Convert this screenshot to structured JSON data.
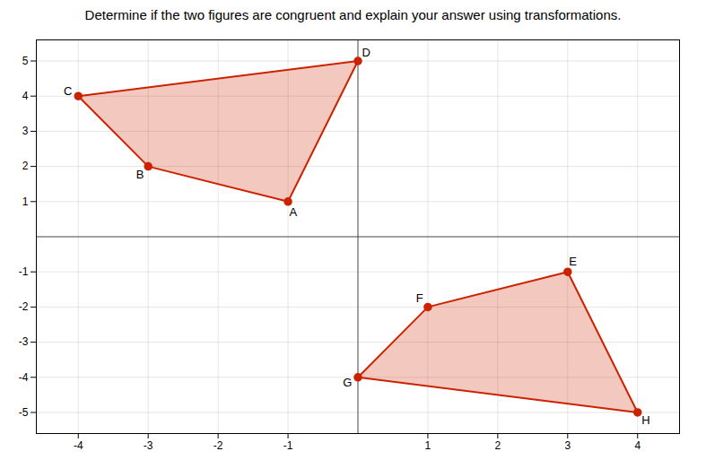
{
  "chart_data": {
    "type": "polygon",
    "title": "Determine if the two figures are congruent and explain your answer using transformations.",
    "xlim": [
      -4.6,
      4.6
    ],
    "ylim": [
      -5.6,
      5.6
    ],
    "xticks": [
      -4,
      -3,
      -2,
      -1,
      1,
      2,
      3,
      4
    ],
    "yticks": [
      -5,
      -4,
      -3,
      -2,
      -1,
      1,
      2,
      3,
      4,
      5
    ],
    "grid": true,
    "series": [
      {
        "labels": [
          "A",
          "B",
          "C",
          "D"
        ],
        "x": [
          -1,
          -3,
          -4,
          0
        ],
        "y": [
          1,
          2,
          4,
          5
        ],
        "color": "#cc2200",
        "marker": "circle"
      },
      {
        "labels": [
          "E",
          "F",
          "G",
          "H"
        ],
        "x": [
          3,
          1,
          0,
          4
        ],
        "y": [
          -1,
          -2,
          -4,
          -5
        ],
        "color": "#cc2200",
        "marker": "circle"
      }
    ]
  }
}
